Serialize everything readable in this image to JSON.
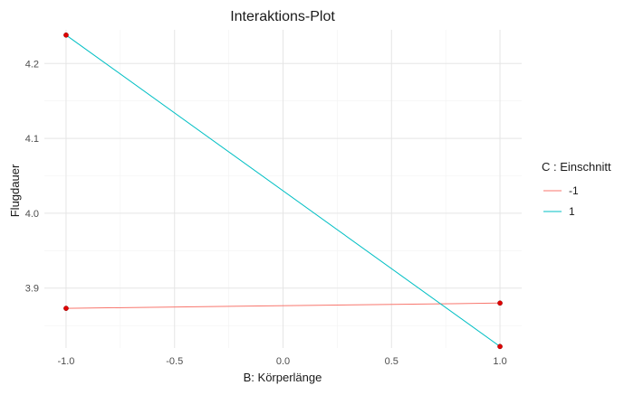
{
  "chart_data": {
    "type": "line",
    "title": "Interaktions-Plot",
    "xlabel": "B: Körperlänge",
    "ylabel": "Flugdauer",
    "x": [
      -1,
      1
    ],
    "xlim": [
      -1.1,
      1.1
    ],
    "ylim": [
      3.82,
      4.245
    ],
    "x_ticks": [
      -1,
      -0.5,
      0,
      0.5,
      1
    ],
    "x_tick_labels": [
      "-1.0",
      "-0.5",
      "0.0",
      "0.5",
      "1.0"
    ],
    "y_ticks": [
      3.9,
      4.0,
      4.1,
      4.2
    ],
    "y_tick_labels": [
      "3.9",
      "4.0",
      "4.1",
      "4.2"
    ],
    "grid": true,
    "legend_title": "C : Einschnitt",
    "legend_position": "right",
    "point_color": "#e00000",
    "series": [
      {
        "name": "-1",
        "color": "#f8766d",
        "values": [
          3.873,
          3.88
        ]
      },
      {
        "name": "1",
        "color": "#00bfc4",
        "values": [
          4.238,
          3.822
        ]
      }
    ]
  }
}
